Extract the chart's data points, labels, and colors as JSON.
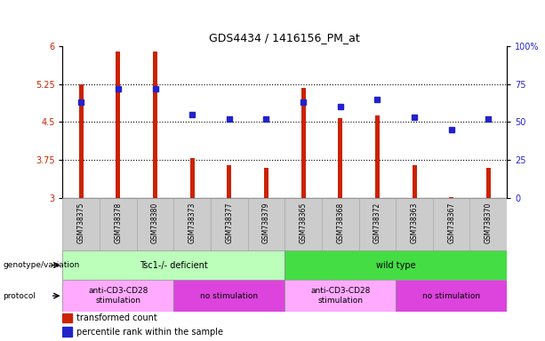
{
  "title": "GDS4434 / 1416156_PM_at",
  "samples": [
    "GSM738375",
    "GSM738378",
    "GSM738380",
    "GSM738373",
    "GSM738377",
    "GSM738379",
    "GSM738365",
    "GSM738368",
    "GSM738372",
    "GSM738363",
    "GSM738367",
    "GSM738370"
  ],
  "bar_values": [
    5.25,
    5.9,
    5.9,
    3.78,
    3.65,
    3.6,
    5.17,
    4.58,
    4.62,
    3.65,
    3.02,
    3.6
  ],
  "blue_dot_pct": [
    63,
    72,
    72,
    55,
    52,
    52,
    63,
    60,
    65,
    53,
    45,
    52
  ],
  "bar_color": "#cc2200",
  "dot_color": "#2222cc",
  "ymin": 3.0,
  "ymax": 6.0,
  "yticks_left": [
    3.0,
    3.75,
    4.5,
    5.25,
    6.0
  ],
  "ytick_labels_left": [
    "3",
    "3.75",
    "4.5",
    "5.25",
    "6"
  ],
  "yticks_right_vals": [
    3.0,
    3.75,
    4.5,
    5.25,
    6.0
  ],
  "ytick_labels_right": [
    "0",
    "25",
    "50",
    "75",
    "100%"
  ],
  "genotype_groups": [
    {
      "label": "Tsc1-/- deficient",
      "start": 0,
      "end": 6,
      "color": "#bbffbb"
    },
    {
      "label": "wild type",
      "start": 6,
      "end": 12,
      "color": "#44dd44"
    }
  ],
  "protocol_groups": [
    {
      "label": "anti-CD3-CD28\nstimulation",
      "start": 0,
      "end": 3,
      "color": "#ffaaff"
    },
    {
      "label": "no stimulation",
      "start": 3,
      "end": 6,
      "color": "#dd44dd"
    },
    {
      "label": "anti-CD3-CD28\nstimulation",
      "start": 6,
      "end": 9,
      "color": "#ffaaff"
    },
    {
      "label": "no stimulation",
      "start": 9,
      "end": 12,
      "color": "#dd44dd"
    }
  ],
  "legend_items": [
    {
      "label": "transformed count",
      "color": "#cc2200"
    },
    {
      "label": "percentile rank within the sample",
      "color": "#2222cc"
    }
  ],
  "left_labels": [
    "genotype/variation",
    "protocol"
  ]
}
